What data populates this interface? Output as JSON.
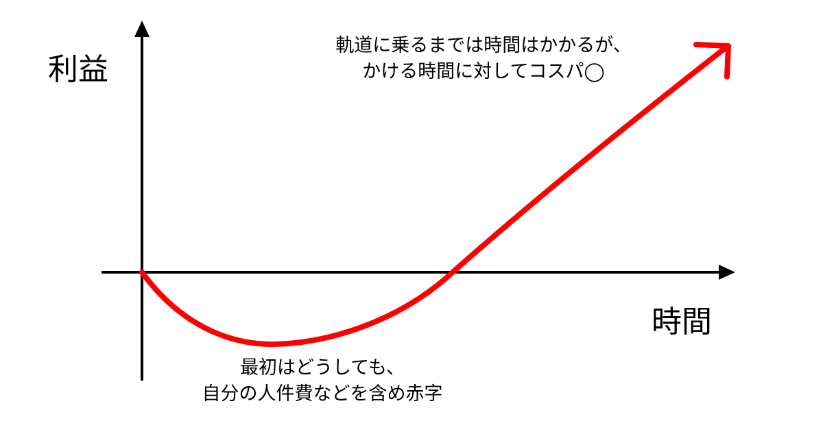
{
  "axes": {
    "y_label": "利益",
    "x_label": "時間"
  },
  "annotations": {
    "top": [
      "軌道に乗るまでは時間はかかるが、",
      "かける時間に対してコスパ◯"
    ],
    "bottom": [
      "最初はどうしても、",
      "自分の人件費などを含め赤字"
    ]
  },
  "colors": {
    "curve": "#ff0000",
    "axes": "#000000"
  }
}
